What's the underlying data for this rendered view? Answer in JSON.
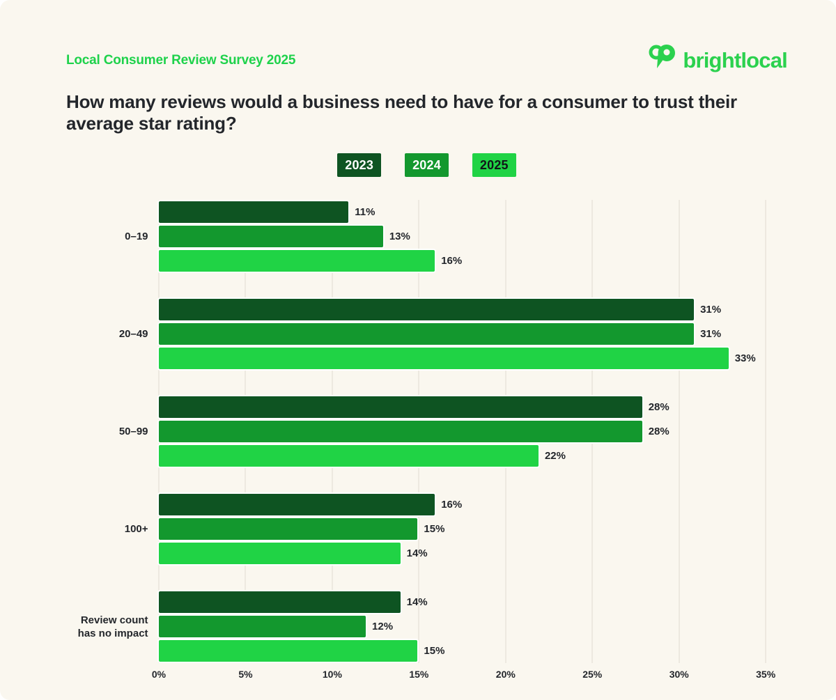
{
  "page": {
    "eyebrow": "Local Consumer Review Survey 2025",
    "title": "How many reviews would a business need to have for a consumer to trust their average star rating?",
    "logo_text": "brightlocal"
  },
  "colors": {
    "background": "#FAF7EF",
    "accent_green": "#1ED24B",
    "logo_green": "#2BD14E",
    "text_dark": "#23262B",
    "gridline": "#EDE9E0",
    "series_2023": "#0E5422",
    "series_2024": "#13982E",
    "series_2025": "#20D345"
  },
  "legend": [
    {
      "label": "2023",
      "color": "#0E5422",
      "text_color": "#FFFFFF"
    },
    {
      "label": "2024",
      "color": "#13982E",
      "text_color": "#FFFFFF"
    },
    {
      "label": "2025",
      "color": "#20D345",
      "text_color": "#111519"
    }
  ],
  "chart_data": {
    "type": "bar",
    "orientation": "horizontal",
    "title": "How many reviews would a business need to have for a consumer to trust their average star rating?",
    "categories": [
      "0–19",
      "20–49",
      "50–99",
      "100+",
      "Review count has no impact"
    ],
    "series": [
      {
        "name": "2023",
        "color": "#0E5422",
        "values": [
          11,
          31,
          28,
          16,
          14
        ]
      },
      {
        "name": "2024",
        "color": "#13982E",
        "values": [
          13,
          31,
          28,
          15,
          12
        ]
      },
      {
        "name": "2025",
        "color": "#20D345",
        "values": [
          16,
          33,
          22,
          14,
          15
        ]
      }
    ],
    "value_suffix": "%",
    "xlabel": "",
    "ylabel": "",
    "xlim": [
      0,
      35
    ],
    "x_ticks": [
      "0%",
      "5%",
      "10%",
      "15%",
      "20%",
      "25%",
      "30%",
      "35%"
    ],
    "grid": true,
    "legend_position": "top"
  }
}
